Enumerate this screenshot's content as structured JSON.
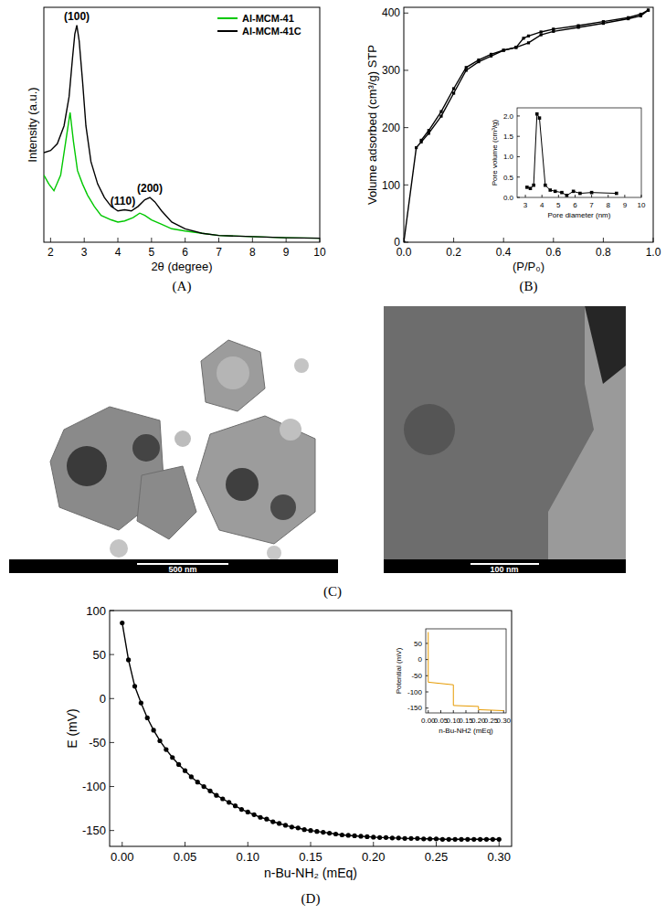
{
  "chart_data": [
    {
      "type": "line",
      "title": "(A)",
      "x_label": "2θ (degree)",
      "y_label": "Intensity (a.u.)",
      "xlim": [
        1.8,
        10
      ],
      "ylim": [
        0,
        105
      ],
      "xticks": [
        2,
        3,
        4,
        5,
        6,
        7,
        8,
        9,
        10
      ],
      "tick_labels": "x",
      "legend": "top-right",
      "annotations": [
        {
          "text": "(100)",
          "x": 2.78
        },
        {
          "text": "(110)",
          "x": 4.15
        },
        {
          "text": "(200)",
          "x": 4.95
        }
      ],
      "series": [
        {
          "name": "Al-MCM-41",
          "color": "#00c800",
          "line_style": "solid",
          "x": [
            1.8,
            1.95,
            2.1,
            2.3,
            2.45,
            2.58,
            2.68,
            2.8,
            2.95,
            3.1,
            3.3,
            3.5,
            3.8,
            4.0,
            4.2,
            4.45,
            4.65,
            4.8,
            5.0,
            5.3,
            5.6,
            6.0,
            6.5,
            7,
            8,
            9,
            10
          ],
          "values": [
            30,
            26,
            23,
            30,
            45,
            58,
            45,
            32,
            26,
            21,
            16,
            12,
            10,
            9,
            9.5,
            11,
            13,
            12,
            10,
            8,
            6,
            5,
            4,
            3,
            2.5,
            2,
            1.8
          ]
        },
        {
          "name": "Al-MCM-41C",
          "color": "#000000",
          "line_style": "solid",
          "x": [
            1.8,
            2.0,
            2.2,
            2.4,
            2.55,
            2.65,
            2.72,
            2.78,
            2.85,
            2.95,
            3.05,
            3.2,
            3.4,
            3.6,
            3.8,
            4.0,
            4.2,
            4.4,
            4.6,
            4.8,
            4.95,
            5.1,
            5.3,
            5.6,
            6.0,
            6.5,
            7,
            8,
            9,
            10
          ],
          "values": [
            40,
            41,
            44,
            52,
            65,
            82,
            93,
            97,
            90,
            72,
            52,
            36,
            26,
            20,
            16,
            14,
            14.5,
            14,
            16,
            19,
            20,
            18,
            14,
            9,
            6,
            4,
            3,
            2.5,
            2,
            1.8
          ]
        }
      ]
    },
    {
      "type": "line",
      "title": "(B)",
      "x_label": "(P/P₀)",
      "y_label": "Volume adsorbed (cm³/g) STP",
      "xlim": [
        0,
        1.0
      ],
      "ylim": [
        0,
        410
      ],
      "xticks": [
        {
          "value": 0,
          "label": "0.0"
        },
        {
          "value": 0.2,
          "label": "0.2"
        },
        {
          "value": 0.4,
          "label": "0.4"
        },
        {
          "value": 0.6,
          "label": "0.6"
        },
        {
          "value": 0.8,
          "label": "0.8"
        },
        {
          "value": 1.0,
          "label": "1.0"
        }
      ],
      "yticks": [
        0,
        100,
        200,
        300,
        400
      ],
      "series": [
        {
          "color": "#000000",
          "line_style": "solid",
          "marker": "square",
          "x": [
            0,
            0.05,
            0.07,
            0.1,
            0.15,
            0.2,
            0.25,
            0.3,
            0.35,
            0.4,
            0.45,
            0.5,
            0.55,
            0.6,
            0.7,
            0.8,
            0.9,
            0.95,
            0.98
          ],
          "values": [
            0,
            165,
            175,
            190,
            220,
            260,
            300,
            315,
            325,
            335,
            340,
            348,
            362,
            368,
            375,
            382,
            390,
            395,
            405
          ]
        },
        {
          "color": "#000000",
          "line_style": "solid",
          "marker": "square",
          "x": [
            0.98,
            0.95,
            0.9,
            0.8,
            0.7,
            0.6,
            0.55,
            0.5,
            0.48,
            0.45,
            0.4,
            0.35,
            0.3,
            0.25,
            0.2,
            0.15,
            0.1,
            0.07
          ],
          "values": [
            405,
            398,
            392,
            385,
            378,
            372,
            367,
            360,
            356,
            340,
            335,
            328,
            318,
            305,
            268,
            228,
            195,
            178
          ]
        }
      ]
    },
    {
      "type": "line",
      "x_label": "Pore diameter (nm)",
      "y_label": "Pore volume (cm³/g)",
      "xlim": [
        2.5,
        10
      ],
      "ylim": [
        0,
        2.2
      ],
      "xticks": [
        3,
        4,
        5,
        6,
        7,
        8,
        9,
        10
      ],
      "yticks": [
        {
          "value": 0,
          "label": "0.0"
        },
        {
          "value": 0.5,
          "label": "0.5"
        },
        {
          "value": 1.0,
          "label": "1.0"
        },
        {
          "value": 1.5,
          "label": "1.5"
        },
        {
          "value": 2.0,
          "label": "2.0"
        }
      ],
      "series": [
        {
          "color": "#000000",
          "line_style": "solid",
          "marker": "square",
          "x": [
            3.1,
            3.3,
            3.5,
            3.7,
            3.85,
            4.2,
            4.5,
            4.8,
            5.2,
            5.5,
            5.9,
            6.3,
            7.0,
            8.5
          ],
          "values": [
            0.25,
            0.22,
            0.3,
            2.05,
            1.95,
            0.3,
            0.18,
            0.15,
            0.12,
            0.05,
            0.15,
            0.1,
            0.12,
            0.1
          ]
        }
      ]
    },
    {
      "type": "line",
      "title": "(D)",
      "x_label": "n-Bu-NH₂ (mEq)",
      "y_label": "E (mV)",
      "xlim": [
        -0.01,
        0.31
      ],
      "ylim": [
        -168,
        100
      ],
      "xticks": [
        {
          "value": 0,
          "label": "0.00"
        },
        {
          "value": 0.05,
          "label": "0.05"
        },
        {
          "value": 0.1,
          "label": "0.10"
        },
        {
          "value": 0.15,
          "label": "0.15"
        },
        {
          "value": 0.2,
          "label": "0.20"
        },
        {
          "value": 0.25,
          "label": "0.25"
        },
        {
          "value": 0.3,
          "label": "0.30"
        }
      ],
      "yticks": [
        -150,
        -100,
        -50,
        0,
        50,
        100
      ],
      "series": [
        {
          "color": "#000000",
          "line_style": "solid",
          "marker": "circle",
          "x": [
            0,
            0.005,
            0.01,
            0.015,
            0.02,
            0.025,
            0.03,
            0.035,
            0.04,
            0.045,
            0.05,
            0.055,
            0.06,
            0.065,
            0.07,
            0.075,
            0.08,
            0.085,
            0.09,
            0.095,
            0.1,
            0.105,
            0.11,
            0.115,
            0.12,
            0.125,
            0.13,
            0.135,
            0.14,
            0.145,
            0.15,
            0.155,
            0.16,
            0.165,
            0.17,
            0.175,
            0.18,
            0.185,
            0.19,
            0.195,
            0.2,
            0.205,
            0.21,
            0.215,
            0.22,
            0.225,
            0.23,
            0.235,
            0.24,
            0.245,
            0.25,
            0.255,
            0.26,
            0.265,
            0.27,
            0.275,
            0.28,
            0.285,
            0.29,
            0.295,
            0.3
          ],
          "values": [
            86,
            44,
            14,
            -5,
            -22,
            -36,
            -48,
            -58,
            -67,
            -75,
            -82,
            -89,
            -95,
            -100,
            -105,
            -110,
            -114,
            -118,
            -122,
            -126,
            -129,
            -132,
            -135,
            -137,
            -140,
            -142,
            -144,
            -146,
            -147,
            -149,
            -150,
            -151,
            -152,
            -153,
            -154,
            -155,
            -155.5,
            -156,
            -156.5,
            -157,
            -157.5,
            -158,
            -158,
            -158.5,
            -158.5,
            -159,
            -159,
            -159,
            -159.5,
            -159.5,
            -159.5,
            -160,
            -160,
            -160,
            -160,
            -160,
            -160,
            -160,
            -160,
            -160,
            -160
          ]
        }
      ]
    },
    {
      "type": "line",
      "x_label": "n-Bu-NH2 (mEq)",
      "y_label": "Potential (mV)",
      "xlim": [
        -0.01,
        0.31
      ],
      "ylim": [
        -165,
        95
      ],
      "xticks": [
        {
          "value": 0,
          "label": "0.00"
        },
        {
          "value": 0.05,
          "label": "0.05"
        },
        {
          "value": 0.1,
          "label": "0.10"
        },
        {
          "value": 0.15,
          "label": "0.15"
        },
        {
          "value": 0.2,
          "label": "0.20"
        },
        {
          "value": 0.25,
          "label": "0.25"
        },
        {
          "value": 0.3,
          "label": "0.30"
        }
      ],
      "yticks": [
        -150,
        -100,
        -50,
        0,
        50
      ],
      "series": [
        {
          "color": "#e69a00",
          "line_style": "solid",
          "x": [
            0,
            0,
            0.1,
            0.1,
            0.2,
            0.2,
            0.3
          ],
          "values": [
            85,
            -70,
            -78,
            -142,
            -145,
            -155,
            -158
          ]
        }
      ]
    }
  ],
  "images": {
    "title": "(C)",
    "scale_bars": [
      "500 nm",
      "100 nm"
    ]
  }
}
